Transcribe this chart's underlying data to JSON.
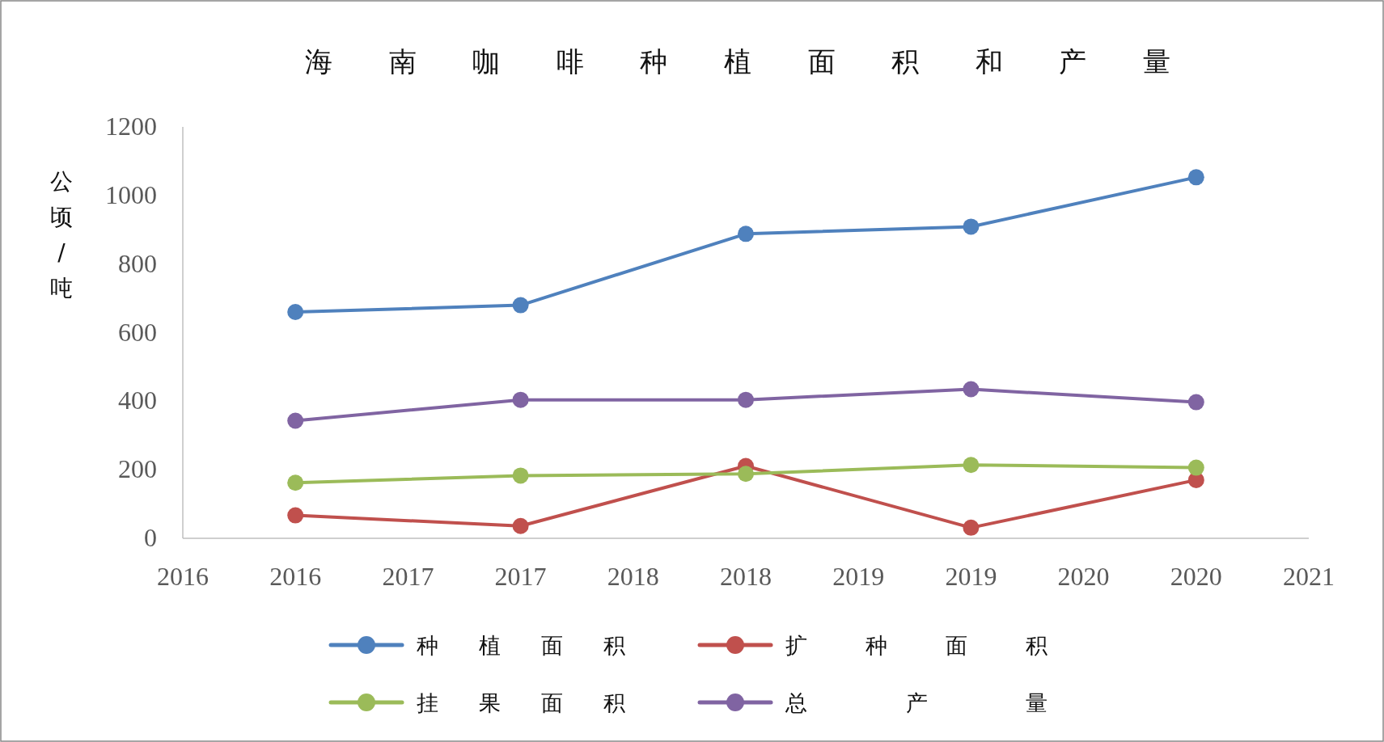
{
  "chart_data": {
    "type": "line",
    "title": "海南咖啡种植面积和产量",
    "ylabel": "公顷/吨",
    "x": [
      2016.5,
      2017.5,
      2018.5,
      2019.5,
      2020.5
    ],
    "xlim": [
      2016,
      2021
    ],
    "xticks": [
      2016,
      {
        "value": 2016.5,
        "label": "2016"
      },
      2017,
      {
        "value": 2017.5,
        "label": "2017"
      },
      2018,
      {
        "value": 2018.5,
        "label": "2018"
      },
      2019,
      {
        "value": 2019.5,
        "label": "2019"
      },
      2020,
      {
        "value": 2020.5,
        "label": "2020"
      },
      2021
    ],
    "ylim": [
      0,
      1200
    ],
    "yticks": [
      0,
      200,
      400,
      600,
      800,
      1000,
      1200
    ],
    "series": [
      {
        "name": "种植面积",
        "color": "#4f81bd",
        "values": [
          660,
          680,
          888,
          909,
          1053
        ]
      },
      {
        "name": "扩种面积",
        "color": "#c0504d",
        "values": [
          67,
          36,
          211,
          31,
          170
        ]
      },
      {
        "name": "挂果面积",
        "color": "#9bbb59",
        "values": [
          162,
          183,
          188,
          214,
          206
        ]
      },
      {
        "name": "总产量",
        "color": "#8064a2",
        "values": [
          343,
          404,
          404,
          435,
          397
        ]
      }
    ],
    "marker": "circle",
    "legend": "bottom",
    "grid": false
  }
}
